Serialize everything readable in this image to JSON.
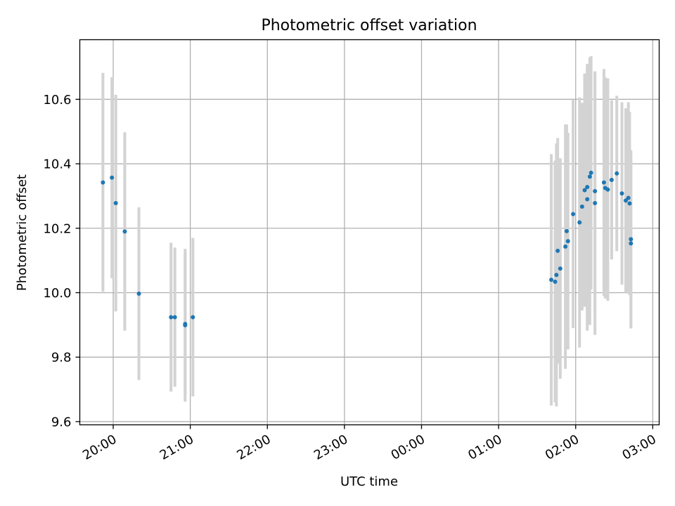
{
  "chart_data": {
    "type": "scatter",
    "title": "Photometric offset variation",
    "xlabel": "UTC time",
    "ylabel": "Photometric offset",
    "grid": true,
    "x_ticks": [
      "20:00",
      "21:00",
      "22:00",
      "23:00",
      "00:00",
      "01:00",
      "02:00",
      "03:00"
    ],
    "y_ticks": [
      "9.6",
      "9.8",
      "10.0",
      "10.2",
      "10.4",
      "10.6"
    ],
    "ylim": [
      9.59,
      10.785
    ],
    "xlim": [
      "19:34",
      "03:05"
    ],
    "colors": {
      "point": "#1f77b4",
      "errorbar": "#d3d3d3",
      "grid": "#b0b0b0"
    },
    "points": [
      {
        "x": "19:52",
        "y": 10.342,
        "lo": 10.003,
        "hi": 10.682
      },
      {
        "x": "19:59",
        "y": 10.357,
        "lo": 10.045,
        "hi": 10.669
      },
      {
        "x": "20:02",
        "y": 10.278,
        "lo": 9.942,
        "hi": 10.614
      },
      {
        "x": "20:09",
        "y": 10.19,
        "lo": 9.882,
        "hi": 10.498
      },
      {
        "x": "20:20",
        "y": 9.997,
        "lo": 9.729,
        "hi": 10.265
      },
      {
        "x": "20:45",
        "y": 9.924,
        "lo": 9.693,
        "hi": 10.155
      },
      {
        "x": "20:48",
        "y": 9.924,
        "lo": 9.708,
        "hi": 10.14
      },
      {
        "x": "20:56",
        "y": 9.903,
        "lo": 9.662,
        "hi": 10.136
      },
      {
        "x": "20:56",
        "y": 9.899,
        "lo": 9.68,
        "hi": 10.12
      },
      {
        "x": "21:02",
        "y": 9.924,
        "lo": 9.678,
        "hi": 10.17
      },
      {
        "x": "01:41",
        "y": 10.04,
        "lo": 9.65,
        "hi": 10.43
      },
      {
        "x": "01:44",
        "y": 10.034,
        "lo": 9.66,
        "hi": 10.41
      },
      {
        "x": "01:45",
        "y": 10.055,
        "lo": 9.647,
        "hi": 10.463
      },
      {
        "x": "01:46",
        "y": 10.13,
        "lo": 9.78,
        "hi": 10.48
      },
      {
        "x": "01:48",
        "y": 10.075,
        "lo": 9.733,
        "hi": 10.417
      },
      {
        "x": "01:52",
        "y": 10.143,
        "lo": 9.764,
        "hi": 10.522
      },
      {
        "x": "01:53",
        "y": 10.191,
        "lo": 9.86,
        "hi": 10.522
      },
      {
        "x": "01:54",
        "y": 10.16,
        "lo": 9.824,
        "hi": 10.496
      },
      {
        "x": "01:58",
        "y": 10.244,
        "lo": 9.89,
        "hi": 10.598
      },
      {
        "x": "02:03",
        "y": 10.218,
        "lo": 9.83,
        "hi": 10.606
      },
      {
        "x": "02:05",
        "y": 10.267,
        "lo": 9.945,
        "hi": 10.589
      },
      {
        "x": "02:07",
        "y": 10.318,
        "lo": 9.956,
        "hi": 10.68
      },
      {
        "x": "02:09",
        "y": 10.29,
        "lo": 9.882,
        "hi": 10.698
      },
      {
        "x": "02:09",
        "y": 10.328,
        "lo": 9.946,
        "hi": 10.71
      },
      {
        "x": "02:11",
        "y": 10.36,
        "lo": 9.9,
        "hi": 10.73
      },
      {
        "x": "02:12",
        "y": 10.372,
        "lo": 10.01,
        "hi": 10.734
      },
      {
        "x": "02:15",
        "y": 10.315,
        "lo": 9.948,
        "hi": 10.682
      },
      {
        "x": "02:15",
        "y": 10.278,
        "lo": 9.869,
        "hi": 10.687
      },
      {
        "x": "02:22",
        "y": 10.342,
        "lo": 9.99,
        "hi": 10.694
      },
      {
        "x": "02:23",
        "y": 10.325,
        "lo": 9.982,
        "hi": 10.668
      },
      {
        "x": "02:25",
        "y": 10.32,
        "lo": 9.975,
        "hi": 10.665
      },
      {
        "x": "02:28",
        "y": 10.35,
        "lo": 10.103,
        "hi": 10.597
      },
      {
        "x": "02:32",
        "y": 10.37,
        "lo": 10.129,
        "hi": 10.611
      },
      {
        "x": "02:36",
        "y": 10.308,
        "lo": 10.025,
        "hi": 10.591
      },
      {
        "x": "02:39",
        "y": 10.286,
        "lo": 10.0,
        "hi": 10.572
      },
      {
        "x": "02:41",
        "y": 10.294,
        "lo": 9.997,
        "hi": 10.591
      },
      {
        "x": "02:42",
        "y": 10.277,
        "lo": 9.993,
        "hi": 10.561
      },
      {
        "x": "02:43",
        "y": 10.166,
        "lo": 9.89,
        "hi": 10.442
      },
      {
        "x": "02:43",
        "y": 10.153,
        "lo": 9.889,
        "hi": 10.417
      }
    ]
  }
}
